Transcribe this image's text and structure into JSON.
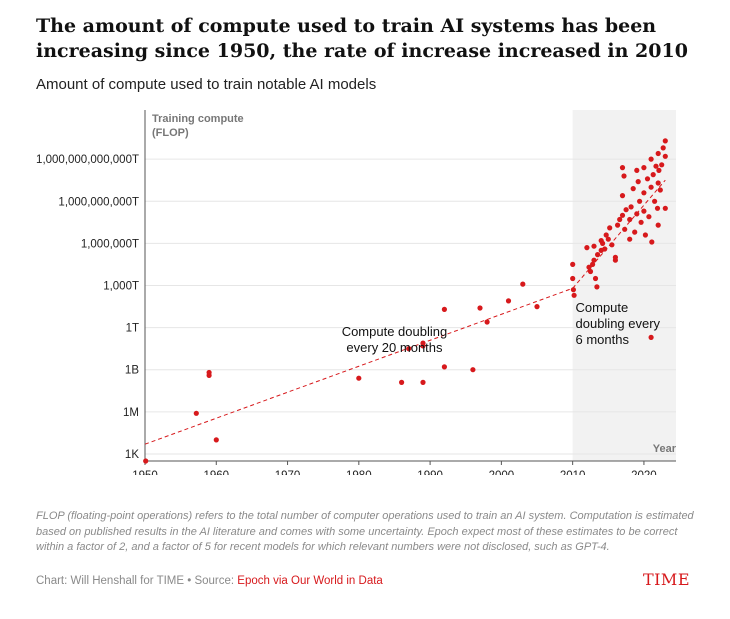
{
  "header": {
    "title": "The amount of compute used to train AI systems has been increasing since 1950, the rate of increase increased in 2010",
    "subtitle": "Amount of compute used to train notable AI models"
  },
  "footer": {
    "note": "FLOP (floating-point operations) refers to the total number of computer operations used to train an AI system. Computation is estimated based on published results in the AI literature and comes with some uncertainty. Epoch expect most of these estimates to be correct within a factor of 2, and a factor of 5 for recent models for which relevant numbers were not disclosed, such as GPT-4.",
    "credit_prefix": "Chart: Will Henshall for TIME • Source: ",
    "credit_source": "Epoch via Our World in Data",
    "logo": "TIME"
  },
  "colors": {
    "accent": "#d7191c",
    "shade": "#f2f2f2",
    "grid": "#e6e6e6",
    "muted": "#8a8a8a"
  },
  "chart_data": {
    "type": "scatter",
    "y_scale": "log10",
    "ylabel_lines": [
      "Training compute",
      "(FLOP)"
    ],
    "xlabel": "Year",
    "xlim": [
      1950,
      2024.5
    ],
    "ylim_log10": [
      2.5,
      27.5
    ],
    "x_ticks": [
      1950,
      1960,
      1970,
      1980,
      1990,
      2000,
      2010,
      2020
    ],
    "y_ticks": [
      {
        "log10": 3,
        "label": "1K"
      },
      {
        "log10": 6,
        "label": "1M"
      },
      {
        "log10": 9,
        "label": "1B"
      },
      {
        "log10": 12,
        "label": "1T"
      },
      {
        "log10": 15,
        "label": "1,000T"
      },
      {
        "log10": 18,
        "label": "1,000,000T"
      },
      {
        "log10": 21,
        "label": "1,000,000,000T"
      },
      {
        "log10": 24,
        "label": "1,000,000,000,000T"
      }
    ],
    "shaded_region": {
      "x_from": 2010,
      "x_to": 2024.5
    },
    "grid": "horizontal",
    "trend_lines": [
      {
        "name": "Compute doubling every 20 months",
        "points": [
          [
            1950,
            3.7
          ],
          [
            2010,
            14.8
          ]
        ]
      },
      {
        "name": "Compute doubling every 6 months",
        "points": [
          [
            2010,
            14.8
          ],
          [
            2023,
            22.5
          ]
        ]
      }
    ],
    "annotations": [
      {
        "lines": [
          "Compute doubling",
          "every  20 months"
        ],
        "x": 1985,
        "log10": 11.4
      },
      {
        "lines": [
          "Compute",
          "doubling every",
          "6 months"
        ],
        "x": 2010.4,
        "log10": 13.1,
        "align": "start"
      }
    ],
    "points": [
      {
        "year": 1950.1,
        "log10": 2.5
      },
      {
        "year": 1957.2,
        "log10": 5.9
      },
      {
        "year": 1959.0,
        "log10": 8.6
      },
      {
        "year": 1959.0,
        "log10": 8.8
      },
      {
        "year": 1960.0,
        "log10": 4.0
      },
      {
        "year": 1980.0,
        "log10": 8.4
      },
      {
        "year": 1986.0,
        "log10": 8.1
      },
      {
        "year": 1987.0,
        "log10": 10.5
      },
      {
        "year": 1989.0,
        "log10": 10.7
      },
      {
        "year": 1989.0,
        "log10": 10.9
      },
      {
        "year": 1989.0,
        "log10": 8.1
      },
      {
        "year": 1992.0,
        "log10": 13.3
      },
      {
        "year": 1992.0,
        "log10": 9.2
      },
      {
        "year": 1996.0,
        "log10": 9.0
      },
      {
        "year": 1997.0,
        "log10": 13.4
      },
      {
        "year": 1998.0,
        "log10": 12.4
      },
      {
        "year": 2001.0,
        "log10": 13.9
      },
      {
        "year": 2003.0,
        "log10": 15.1
      },
      {
        "year": 2005.0,
        "log10": 13.5
      },
      {
        "year": 2010.0,
        "log10": 15.5
      },
      {
        "year": 2010.0,
        "log10": 16.5
      },
      {
        "year": 2010.1,
        "log10": 14.7
      },
      {
        "year": 2010.2,
        "log10": 14.3
      },
      {
        "year": 2012.0,
        "log10": 17.7
      },
      {
        "year": 2012.3,
        "log10": 16.3
      },
      {
        "year": 2012.5,
        "log10": 16.0
      },
      {
        "year": 2012.8,
        "log10": 16.5
      },
      {
        "year": 2013.0,
        "log10": 17.8
      },
      {
        "year": 2013.2,
        "log10": 15.5
      },
      {
        "year": 2013.4,
        "log10": 14.9
      },
      {
        "year": 2013.0,
        "log10": 16.8
      },
      {
        "year": 2013.5,
        "log10": 17.2
      },
      {
        "year": 2014.0,
        "log10": 17.5
      },
      {
        "year": 2014.0,
        "log10": 18.2
      },
      {
        "year": 2014.2,
        "log10": 18.0
      },
      {
        "year": 2014.5,
        "log10": 17.6
      },
      {
        "year": 2014.7,
        "log10": 18.6
      },
      {
        "year": 2015.0,
        "log10": 18.3
      },
      {
        "year": 2015.2,
        "log10": 19.1
      },
      {
        "year": 2015.5,
        "log10": 17.9
      },
      {
        "year": 2016.0,
        "log10": 16.8
      },
      {
        "year": 2016.0,
        "log10": 17.0
      },
      {
        "year": 2016.3,
        "log10": 19.3
      },
      {
        "year": 2016.6,
        "log10": 19.7
      },
      {
        "year": 2017.0,
        "log10": 20.0
      },
      {
        "year": 2017.0,
        "log10": 21.4
      },
      {
        "year": 2017.0,
        "log10": 23.4
      },
      {
        "year": 2017.2,
        "log10": 22.8
      },
      {
        "year": 2017.3,
        "log10": 19.0
      },
      {
        "year": 2017.5,
        "log10": 20.4
      },
      {
        "year": 2018.0,
        "log10": 19.7
      },
      {
        "year": 2018.0,
        "log10": 18.3
      },
      {
        "year": 2018.2,
        "log10": 20.6
      },
      {
        "year": 2018.5,
        "log10": 21.9
      },
      {
        "year": 2018.7,
        "log10": 18.8
      },
      {
        "year": 2019.0,
        "log10": 20.1
      },
      {
        "year": 2019.0,
        "log10": 23.2
      },
      {
        "year": 2019.2,
        "log10": 22.4
      },
      {
        "year": 2019.4,
        "log10": 21.0
      },
      {
        "year": 2019.6,
        "log10": 19.5
      },
      {
        "year": 2020.0,
        "log10": 20.3
      },
      {
        "year": 2020.0,
        "log10": 21.6
      },
      {
        "year": 2020.0,
        "log10": 23.4
      },
      {
        "year": 2020.2,
        "log10": 18.6
      },
      {
        "year": 2020.5,
        "log10": 22.6
      },
      {
        "year": 2020.7,
        "log10": 19.9
      },
      {
        "year": 2021.0,
        "log10": 22.0
      },
      {
        "year": 2021.0,
        "log10": 24.0
      },
      {
        "year": 2021.0,
        "log10": 11.3
      },
      {
        "year": 2021.1,
        "log10": 18.1
      },
      {
        "year": 2021.3,
        "log10": 22.9
      },
      {
        "year": 2021.5,
        "log10": 21.0
      },
      {
        "year": 2021.7,
        "log10": 23.5
      },
      {
        "year": 2021.9,
        "log10": 20.5
      },
      {
        "year": 2022.0,
        "log10": 22.3
      },
      {
        "year": 2022.0,
        "log10": 24.4
      },
      {
        "year": 2022.0,
        "log10": 19.3
      },
      {
        "year": 2022.1,
        "log10": 23.2
      },
      {
        "year": 2022.3,
        "log10": 21.8
      },
      {
        "year": 2022.5,
        "log10": 23.6
      },
      {
        "year": 2022.7,
        "log10": 24.8
      },
      {
        "year": 2023.0,
        "log10": 25.3
      },
      {
        "year": 2023.0,
        "log10": 24.2
      },
      {
        "year": 2023.0,
        "log10": 20.5
      }
    ]
  }
}
